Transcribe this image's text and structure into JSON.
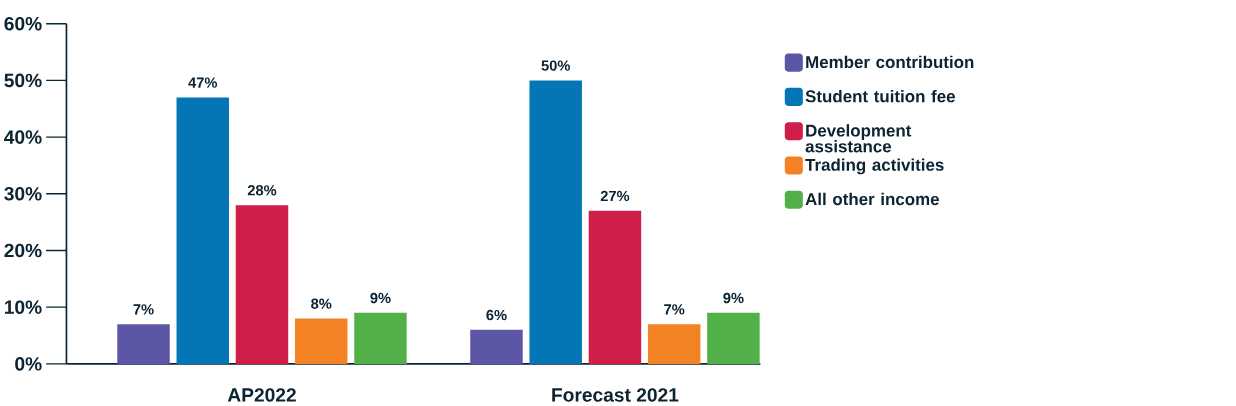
{
  "chart_data": {
    "type": "bar",
    "categories": [
      "AP2022",
      "Forecast 2021"
    ],
    "series": [
      {
        "name": "Member contribution",
        "color": "#5b57a6",
        "values": [
          7,
          6
        ],
        "value_labels": [
          "7%",
          "6%"
        ]
      },
      {
        "name": "Student tuition fee",
        "color": "#0576b5",
        "values": [
          47,
          50
        ],
        "value_labels": [
          "47%",
          "50%"
        ]
      },
      {
        "name": "Development assistance",
        "color": "#d01e4b",
        "values": [
          28,
          27
        ],
        "value_labels": [
          "28%",
          "27%"
        ]
      },
      {
        "name": "Trading activities",
        "color": "#f38225",
        "values": [
          8,
          7
        ],
        "value_labels": [
          "8%",
          "7%"
        ]
      },
      {
        "name": "All other income",
        "color": "#52b048",
        "values": [
          9,
          9
        ],
        "value_labels": [
          "9%",
          "9%"
        ]
      }
    ],
    "ylim": [
      0,
      60
    ],
    "yticks": [
      {
        "value": 0,
        "label": "0%"
      },
      {
        "value": 10,
        "label": "10%"
      },
      {
        "value": 20,
        "label": "20%"
      },
      {
        "value": 30,
        "label": "30%"
      },
      {
        "value": 40,
        "label": "40%"
      },
      {
        "value": 50,
        "label": "50%"
      },
      {
        "value": 60,
        "label": "60%"
      }
    ],
    "legend": "right"
  }
}
